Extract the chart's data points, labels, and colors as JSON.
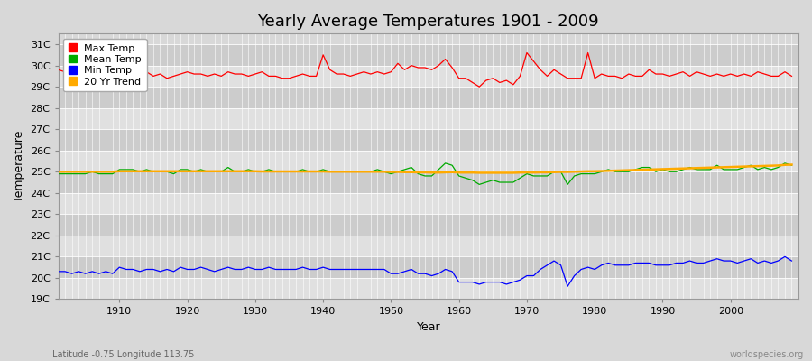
{
  "title": "Yearly Average Temperatures 1901 - 2009",
  "xlabel": "Year",
  "ylabel": "Temperature",
  "bottom_left": "Latitude -0.75 Longitude 113.75",
  "bottom_right": "worldspecies.org",
  "years": [
    1901,
    1902,
    1903,
    1904,
    1905,
    1906,
    1907,
    1908,
    1909,
    1910,
    1911,
    1912,
    1913,
    1914,
    1915,
    1916,
    1917,
    1918,
    1919,
    1920,
    1921,
    1922,
    1923,
    1924,
    1925,
    1926,
    1927,
    1928,
    1929,
    1930,
    1931,
    1932,
    1933,
    1934,
    1935,
    1936,
    1937,
    1938,
    1939,
    1940,
    1941,
    1942,
    1943,
    1944,
    1945,
    1946,
    1947,
    1948,
    1949,
    1950,
    1951,
    1952,
    1953,
    1954,
    1955,
    1956,
    1957,
    1958,
    1959,
    1960,
    1961,
    1962,
    1963,
    1964,
    1965,
    1966,
    1967,
    1968,
    1969,
    1970,
    1971,
    1972,
    1973,
    1974,
    1975,
    1976,
    1977,
    1978,
    1979,
    1980,
    1981,
    1982,
    1983,
    1984,
    1985,
    1986,
    1987,
    1988,
    1989,
    1990,
    1991,
    1992,
    1993,
    1994,
    1995,
    1996,
    1997,
    1998,
    1999,
    2000,
    2001,
    2002,
    2003,
    2004,
    2005,
    2006,
    2007,
    2008,
    2009
  ],
  "max_temp": [
    29.8,
    29.7,
    29.8,
    29.6,
    29.7,
    29.7,
    29.6,
    29.7,
    29.6,
    29.7,
    29.6,
    29.5,
    29.6,
    29.7,
    29.5,
    29.6,
    29.4,
    29.5,
    29.6,
    29.7,
    29.6,
    29.6,
    29.5,
    29.6,
    29.5,
    29.7,
    29.6,
    29.6,
    29.5,
    29.6,
    29.7,
    29.5,
    29.5,
    29.4,
    29.4,
    29.5,
    29.6,
    29.5,
    29.5,
    30.5,
    29.8,
    29.6,
    29.6,
    29.5,
    29.6,
    29.7,
    29.6,
    29.7,
    29.6,
    29.7,
    30.1,
    29.8,
    30.0,
    29.9,
    29.9,
    29.8,
    30.0,
    30.3,
    29.9,
    29.4,
    29.4,
    29.2,
    29.0,
    29.3,
    29.4,
    29.2,
    29.3,
    29.1,
    29.5,
    30.6,
    30.2,
    29.8,
    29.5,
    29.8,
    29.6,
    29.4,
    29.4,
    29.4,
    30.6,
    29.4,
    29.6,
    29.5,
    29.5,
    29.4,
    29.6,
    29.5,
    29.5,
    29.8,
    29.6,
    29.6,
    29.5,
    29.6,
    29.7,
    29.5,
    29.7,
    29.6,
    29.5,
    29.6,
    29.5,
    29.6,
    29.5,
    29.6,
    29.5,
    29.7,
    29.6,
    29.5,
    29.5,
    29.7,
    29.5
  ],
  "mean_temp": [
    24.9,
    24.9,
    24.9,
    24.9,
    24.9,
    25.0,
    24.9,
    24.9,
    24.9,
    25.1,
    25.1,
    25.1,
    25.0,
    25.1,
    25.0,
    25.0,
    25.0,
    24.9,
    25.1,
    25.1,
    25.0,
    25.1,
    25.0,
    25.0,
    25.0,
    25.2,
    25.0,
    25.0,
    25.1,
    25.0,
    25.0,
    25.1,
    25.0,
    25.0,
    25.0,
    25.0,
    25.1,
    25.0,
    25.0,
    25.1,
    25.0,
    25.0,
    25.0,
    25.0,
    25.0,
    25.0,
    25.0,
    25.1,
    25.0,
    24.9,
    25.0,
    25.1,
    25.2,
    24.9,
    24.8,
    24.8,
    25.1,
    25.4,
    25.3,
    24.8,
    24.7,
    24.6,
    24.4,
    24.5,
    24.6,
    24.5,
    24.5,
    24.5,
    24.7,
    24.9,
    24.8,
    24.8,
    24.8,
    25.0,
    25.0,
    24.4,
    24.8,
    24.9,
    24.9,
    24.9,
    25.0,
    25.1,
    25.0,
    25.0,
    25.0,
    25.1,
    25.2,
    25.2,
    25.0,
    25.1,
    25.0,
    25.0,
    25.1,
    25.2,
    25.1,
    25.1,
    25.1,
    25.3,
    25.1,
    25.1,
    25.1,
    25.2,
    25.3,
    25.1,
    25.2,
    25.1,
    25.2,
    25.4,
    25.3
  ],
  "min_temp": [
    20.3,
    20.3,
    20.2,
    20.3,
    20.2,
    20.3,
    20.2,
    20.3,
    20.2,
    20.5,
    20.4,
    20.4,
    20.3,
    20.4,
    20.4,
    20.3,
    20.4,
    20.3,
    20.5,
    20.4,
    20.4,
    20.5,
    20.4,
    20.3,
    20.4,
    20.5,
    20.4,
    20.4,
    20.5,
    20.4,
    20.4,
    20.5,
    20.4,
    20.4,
    20.4,
    20.4,
    20.5,
    20.4,
    20.4,
    20.5,
    20.4,
    20.4,
    20.4,
    20.4,
    20.4,
    20.4,
    20.4,
    20.4,
    20.4,
    20.2,
    20.2,
    20.3,
    20.4,
    20.2,
    20.2,
    20.1,
    20.2,
    20.4,
    20.3,
    19.8,
    19.8,
    19.8,
    19.7,
    19.8,
    19.8,
    19.8,
    19.7,
    19.8,
    19.9,
    20.1,
    20.1,
    20.4,
    20.6,
    20.8,
    20.6,
    19.6,
    20.1,
    20.4,
    20.5,
    20.4,
    20.6,
    20.7,
    20.6,
    20.6,
    20.6,
    20.7,
    20.7,
    20.7,
    20.6,
    20.6,
    20.6,
    20.7,
    20.7,
    20.8,
    20.7,
    20.7,
    20.8,
    20.9,
    20.8,
    20.8,
    20.7,
    20.8,
    20.9,
    20.7,
    20.8,
    20.7,
    20.8,
    21.0,
    20.8
  ],
  "trend": [
    25.0,
    25.0,
    25.0,
    25.0,
    25.0,
    25.0,
    25.0,
    25.0,
    25.0,
    25.02,
    25.02,
    25.02,
    25.02,
    25.02,
    25.02,
    25.02,
    25.02,
    25.02,
    25.02,
    25.02,
    25.02,
    25.02,
    25.02,
    25.02,
    25.02,
    25.02,
    25.02,
    25.02,
    25.02,
    25.02,
    25.01,
    25.01,
    25.01,
    25.01,
    25.01,
    25.01,
    25.01,
    25.01,
    25.01,
    25.01,
    25.0,
    25.0,
    25.0,
    25.0,
    25.0,
    25.0,
    25.0,
    25.0,
    25.0,
    24.99,
    24.99,
    24.98,
    24.98,
    24.97,
    24.97,
    24.96,
    24.96,
    24.97,
    24.98,
    24.96,
    24.96,
    24.96,
    24.95,
    24.95,
    24.95,
    24.95,
    24.95,
    24.95,
    24.96,
    24.97,
    24.96,
    24.97,
    24.97,
    24.98,
    24.99,
    24.99,
    25.0,
    25.01,
    25.02,
    25.02,
    25.03,
    25.04,
    25.05,
    25.06,
    25.07,
    25.08,
    25.09,
    25.1,
    25.11,
    25.12,
    25.13,
    25.14,
    25.15,
    25.16,
    25.17,
    25.18,
    25.19,
    25.2,
    25.21,
    25.22,
    25.23,
    25.24,
    25.25,
    25.26,
    25.27,
    25.28,
    25.29,
    25.32,
    25.33
  ],
  "max_color": "#ff0000",
  "mean_color": "#00aa00",
  "min_color": "#0000ff",
  "trend_color": "#ffaa00",
  "fig_bg_color": "#d8d8d8",
  "plot_bg_color": "#d8d8d8",
  "band_color_light": "#e0e0e0",
  "band_color_dark": "#cccccc",
  "grid_color": "#ffffff",
  "ylim": [
    19,
    31.5
  ],
  "yticks": [
    19,
    20,
    21,
    22,
    23,
    24,
    25,
    26,
    27,
    28,
    29,
    30,
    31
  ],
  "ytick_labels": [
    "19C",
    "20C",
    "21C",
    "22C",
    "23C",
    "24C",
    "25C",
    "26C",
    "27C",
    "28C",
    "29C",
    "30C",
    "31C"
  ],
  "xticks": [
    1910,
    1920,
    1930,
    1940,
    1950,
    1960,
    1970,
    1980,
    1990,
    2000
  ],
  "xlim": [
    1901,
    2010
  ],
  "legend_labels": [
    "Max Temp",
    "Mean Temp",
    "Min Temp",
    "20 Yr Trend"
  ],
  "title_fontsize": 13,
  "axis_label_fontsize": 9,
  "tick_fontsize": 8,
  "legend_fontsize": 8
}
